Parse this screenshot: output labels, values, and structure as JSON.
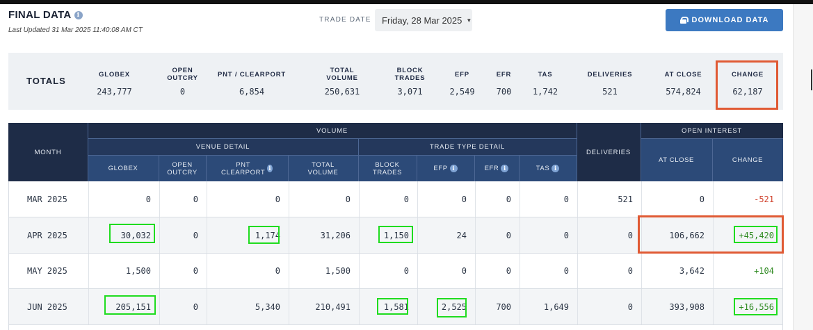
{
  "header": {
    "title": "FINAL DATA",
    "info_icon": "i",
    "last_updated": "Last Updated 31 Mar 2025 11:40:08 AM CT",
    "trade_date_label": "TRADE DATE",
    "trade_date_value": "Friday, 28 Mar 2025",
    "download_label": "DOWNLOAD DATA"
  },
  "totals": {
    "label": "TOTALS",
    "columns": [
      {
        "header": "GLOBEX",
        "value": "243,777"
      },
      {
        "header": "OPEN OUTCRY",
        "value": "0"
      },
      {
        "header": "PNT / CLEARPORT",
        "value": "6,854"
      },
      {
        "header": "TOTAL VOLUME",
        "value": "250,631"
      },
      {
        "header": "BLOCK TRADES",
        "value": "3,071"
      },
      {
        "header": "EFP",
        "value": "2,549"
      },
      {
        "header": "EFR",
        "value": "700"
      },
      {
        "header": "TAS",
        "value": "1,742"
      },
      {
        "header": "DELIVERIES",
        "value": "521"
      },
      {
        "header": "AT CLOSE",
        "value": "574,824"
      },
      {
        "header": "CHANGE",
        "value": "62,187"
      }
    ]
  },
  "table": {
    "group_headers": {
      "month": "MONTH",
      "volume": "VOLUME",
      "venue_detail": "VENUE DETAIL",
      "trade_type_detail": "TRADE TYPE DETAIL",
      "deliveries": "DELIVERIES",
      "open_interest": "OPEN INTEREST"
    },
    "sub_headers": {
      "globex": "GLOBEX",
      "open_outcry": "OPEN OUTCRY",
      "pnt_clearport": "PNT CLEARPORT",
      "total_volume": "TOTAL VOLUME",
      "block_trades": "BLOCK TRADES",
      "efp": "EFP",
      "efr": "EFR",
      "tas": "TAS",
      "at_close": "AT CLOSE",
      "change": "CHANGE"
    },
    "rows": [
      {
        "month": "MAR 2025",
        "globex": "0",
        "open_outcry": "0",
        "pnt": "0",
        "total": "0",
        "block": "0",
        "efp": "0",
        "efr": "0",
        "tas": "0",
        "deliveries": "521",
        "at_close": "0",
        "change": "-521"
      },
      {
        "month": "APR 2025",
        "globex": "30,032",
        "open_outcry": "0",
        "pnt": "1,174",
        "total": "31,206",
        "block": "1,150",
        "efp": "24",
        "efr": "0",
        "tas": "0",
        "deliveries": "0",
        "at_close": "106,662",
        "change": "+45,420"
      },
      {
        "month": "MAY 2025",
        "globex": "1,500",
        "open_outcry": "0",
        "pnt": "0",
        "total": "1,500",
        "block": "0",
        "efp": "0",
        "efr": "0",
        "tas": "0",
        "deliveries": "0",
        "at_close": "3,642",
        "change": "+104"
      },
      {
        "month": "JUN 2025",
        "globex": "205,151",
        "open_outcry": "0",
        "pnt": "5,340",
        "total": "210,491",
        "block": "1,581",
        "efp": "2,525",
        "efr": "700",
        "tas": "1,649",
        "deliveries": "0",
        "at_close": "393,908",
        "change": "+16,556"
      }
    ]
  },
  "colors": {
    "accent": "#3c79c1",
    "header_dark": "#1e2c47",
    "negative": "#d0412c",
    "positive": "#2f8a22",
    "highlight_red": "#e05a34",
    "highlight_green": "#1fdc1f"
  }
}
